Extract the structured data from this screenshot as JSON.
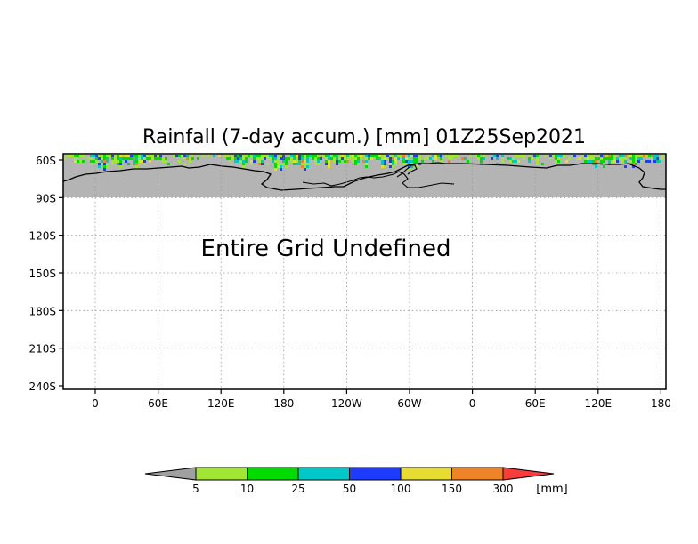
{
  "chart_data": {
    "type": "heatmap",
    "title": "Rainfall (7-day accum.) [mm] 01Z25Sep2021",
    "message": "Entire Grid Undefined",
    "x_tick_labels": [
      "0",
      "60E",
      "120E",
      "180",
      "120W",
      "60W",
      "0",
      "60E",
      "120E",
      "180"
    ],
    "y_tick_labels": [
      "60S",
      "90S",
      "120S",
      "150S",
      "180S",
      "210S",
      "240S"
    ],
    "y_values": [
      -60,
      -90,
      -120,
      -150,
      -180,
      -210,
      -240
    ],
    "ylim": [
      -240,
      -60
    ],
    "grid": true,
    "colorbar": {
      "unit": "[mm]",
      "levels": [
        "5",
        "10",
        "25",
        "50",
        "100",
        "150",
        "300"
      ],
      "colors": [
        "#a0a0a0",
        "#a0e632",
        "#00dc00",
        "#00c8c8",
        "#1e3cff",
        "#e6dc32",
        "#f08228",
        "#fa3c3c"
      ]
    },
    "land_color": "#b4b4b4"
  }
}
